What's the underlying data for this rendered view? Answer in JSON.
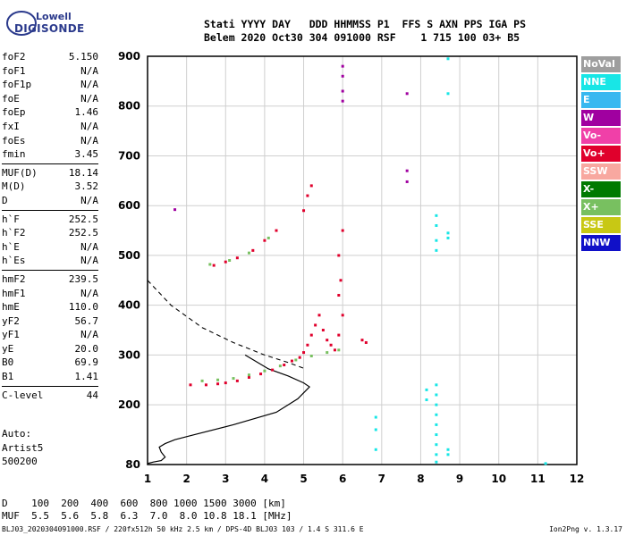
{
  "logo": {
    "top": "Lowell",
    "bottom": "DIGISONDE"
  },
  "header": {
    "line1": "Stati YYYY DAY   DDD HHMMSS P1  FFS S AXN PPS IGA PS",
    "line2": "Belem 2020 Oct30 304 091000 RSF    1 715 100 03+ B5"
  },
  "params": [
    {
      "label": "foF2",
      "value": "5.150"
    },
    {
      "label": "foF1",
      "value": "N/A"
    },
    {
      "label": "foF1p",
      "value": "N/A"
    },
    {
      "label": "foE",
      "value": "N/A"
    },
    {
      "label": "foEp",
      "value": "1.46"
    },
    {
      "label": "fxI",
      "value": "N/A"
    },
    {
      "label": "foEs",
      "value": "N/A"
    },
    {
      "label": "fmin",
      "value": "3.45"
    },
    {
      "sep": true
    },
    {
      "label": "MUF(D)",
      "value": "18.14"
    },
    {
      "label": "M(D)",
      "value": "3.52"
    },
    {
      "label": "D",
      "value": "N/A"
    },
    {
      "sep": true
    },
    {
      "label": "h`F",
      "value": "252.5"
    },
    {
      "label": "h`F2",
      "value": "252.5"
    },
    {
      "label": "h`E",
      "value": "N/A"
    },
    {
      "label": "h`Es",
      "value": "N/A"
    },
    {
      "sep": true
    },
    {
      "label": "hmF2",
      "value": "239.5"
    },
    {
      "label": "hmF1",
      "value": "N/A"
    },
    {
      "label": "hmE",
      "value": "110.0"
    },
    {
      "label": "yF2",
      "value": "56.7"
    },
    {
      "label": "yF1",
      "value": "N/A"
    },
    {
      "label": "yE",
      "value": "20.0"
    },
    {
      "label": "B0",
      "value": "69.9"
    },
    {
      "label": "B1",
      "value": "1.41"
    },
    {
      "sep": true
    },
    {
      "label": "C-level",
      "value": "44"
    }
  ],
  "auto": {
    "line1": "Auto:",
    "line2": "Artist5",
    "line3": "500200"
  },
  "legend": [
    {
      "label": "NoVal",
      "bg": "#9e9e9e",
      "fg": "#ffffff"
    },
    {
      "label": "NNE",
      "bg": "#18e6e6",
      "fg": "#ffffff"
    },
    {
      "label": "E",
      "bg": "#38b8f0",
      "fg": "#ffffff"
    },
    {
      "label": "W",
      "bg": "#a000a0",
      "fg": "#ffffff"
    },
    {
      "label": "Vo-",
      "bg": "#f040a8",
      "fg": "#ffffff"
    },
    {
      "label": "Vo+",
      "bg": "#e0002c",
      "fg": "#ffffff"
    },
    {
      "label": "SSW",
      "bg": "#f8a8a0",
      "fg": "#ffffff"
    },
    {
      "label": "X-",
      "bg": "#007a00",
      "fg": "#ffffff"
    },
    {
      "label": "X+",
      "bg": "#78c060",
      "fg": "#ffffff"
    },
    {
      "label": "SSE",
      "bg": "#c8c814",
      "fg": "#ffffff"
    },
    {
      "label": "NNW",
      "bg": "#1010c8",
      "fg": "#ffffff"
    }
  ],
  "bottom": {
    "d_label": "D  ",
    "d_values": "  100  200  400  600  800 1000 1500 3000 [km]",
    "m_label": "MUF",
    "m_values": "  5.5  5.6  5.8  6.3  7.0  8.0 10.8 18.1 [MHz]",
    "footer": "BLJ03_2020304091000.RSF / 220fx512h 50 kHz 2.5 km / DPS-4D BLJ03 103 / 1.4 S 311.6 E",
    "version": "Ion2Png v. 1.3.17"
  },
  "chart_data": {
    "type": "scatter",
    "xlim": [
      1,
      12
    ],
    "ylim": [
      80,
      900
    ],
    "x_ticks": [
      1,
      2,
      3,
      4,
      5,
      6,
      7,
      8,
      9,
      10,
      11,
      12
    ],
    "y_ticks": [
      80,
      200,
      300,
      400,
      500,
      600,
      700,
      800,
      900
    ],
    "grid": true,
    "series": [
      {
        "name": "Vo+",
        "color": "#e0002c",
        "points": [
          [
            2.1,
            240
          ],
          [
            2.5,
            240
          ],
          [
            2.8,
            242
          ],
          [
            3.0,
            244
          ],
          [
            3.3,
            248
          ],
          [
            3.6,
            255
          ],
          [
            3.9,
            262
          ],
          [
            4.2,
            270
          ],
          [
            4.5,
            280
          ],
          [
            4.7,
            288
          ],
          [
            4.9,
            295
          ],
          [
            5.0,
            305
          ],
          [
            5.1,
            320
          ],
          [
            5.2,
            340
          ],
          [
            5.3,
            360
          ],
          [
            5.4,
            380
          ],
          [
            5.5,
            350
          ],
          [
            5.6,
            330
          ],
          [
            5.7,
            320
          ],
          [
            5.8,
            310
          ],
          [
            5.9,
            340
          ],
          [
            6.0,
            380
          ],
          [
            2.7,
            480
          ],
          [
            3.0,
            487
          ],
          [
            3.3,
            495
          ],
          [
            3.7,
            510
          ],
          [
            4.0,
            530
          ],
          [
            4.3,
            550
          ],
          [
            5.0,
            590
          ],
          [
            5.1,
            620
          ],
          [
            5.2,
            640
          ],
          [
            6.5,
            330
          ],
          [
            6.6,
            325
          ],
          [
            5.9,
            420
          ],
          [
            5.95,
            450
          ],
          [
            5.9,
            500
          ],
          [
            6.0,
            550
          ]
        ]
      },
      {
        "name": "X+",
        "color": "#78c060",
        "points": [
          [
            2.4,
            248
          ],
          [
            2.8,
            250
          ],
          [
            3.2,
            253
          ],
          [
            3.6,
            260
          ],
          [
            4.0,
            268
          ],
          [
            4.4,
            278
          ],
          [
            4.8,
            290
          ],
          [
            5.2,
            298
          ],
          [
            5.6,
            305
          ],
          [
            5.9,
            310
          ],
          [
            2.6,
            482
          ],
          [
            3.1,
            490
          ],
          [
            3.6,
            505
          ],
          [
            4.1,
            535
          ]
        ]
      },
      {
        "name": "W",
        "color": "#a000a0",
        "points": [
          [
            1.7,
            592
          ],
          [
            6.0,
            880
          ],
          [
            6.0,
            860
          ],
          [
            6.0,
            830
          ],
          [
            6.0,
            810
          ],
          [
            7.65,
            825
          ],
          [
            7.65,
            670
          ],
          [
            7.65,
            648
          ]
        ]
      },
      {
        "name": "NNE",
        "color": "#18e6e6",
        "points": [
          [
            8.4,
            240
          ],
          [
            8.4,
            220
          ],
          [
            8.4,
            200
          ],
          [
            8.4,
            180
          ],
          [
            8.4,
            160
          ],
          [
            8.4,
            140
          ],
          [
            8.4,
            120
          ],
          [
            8.4,
            100
          ],
          [
            8.4,
            85
          ],
          [
            8.4,
            580
          ],
          [
            8.4,
            560
          ],
          [
            8.4,
            530
          ],
          [
            8.4,
            510
          ],
          [
            8.7,
            545
          ],
          [
            8.7,
            535
          ],
          [
            8.7,
            895
          ],
          [
            8.7,
            825
          ],
          [
            6.85,
            175
          ],
          [
            6.85,
            150
          ],
          [
            6.85,
            110
          ],
          [
            8.7,
            110
          ],
          [
            8.7,
            100
          ],
          [
            8.15,
            230
          ],
          [
            8.15,
            210
          ],
          [
            11.2,
            82
          ]
        ]
      }
    ]
  }
}
